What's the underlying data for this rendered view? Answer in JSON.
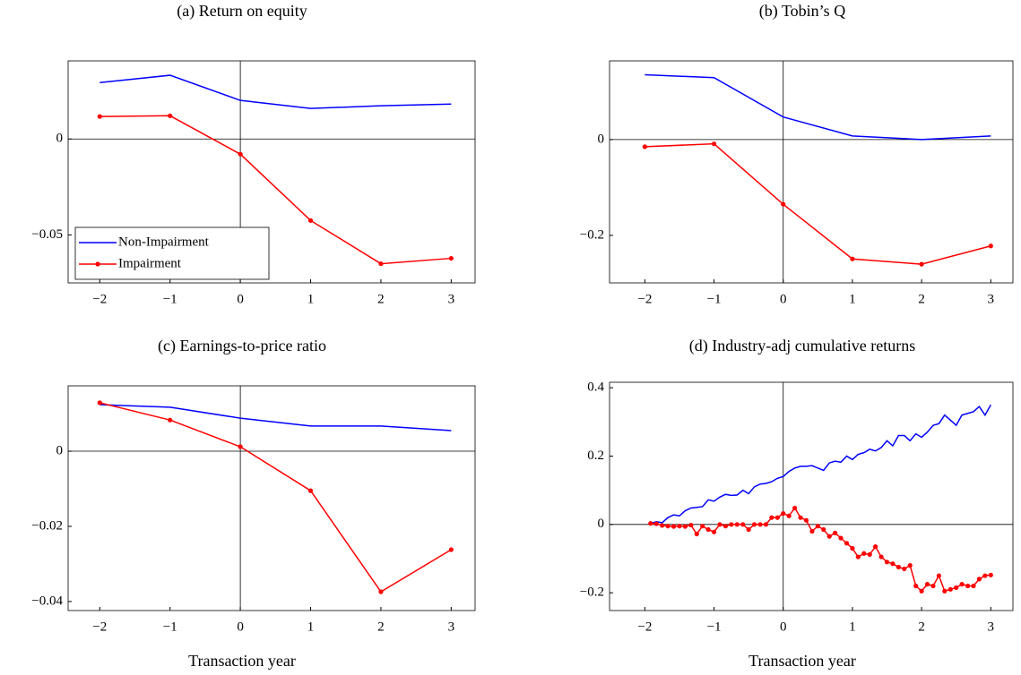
{
  "chart_data": [
    {
      "type": "line",
      "title": "(a) Return on equity",
      "x": [
        -2,
        -1,
        0,
        1,
        2,
        3
      ],
      "series": [
        {
          "name": "Non-Impairment",
          "color": "#0000ff",
          "marker": false,
          "values": [
            0.0294,
            0.0332,
            0.0201,
            0.0159,
            0.0173,
            0.0182
          ]
        },
        {
          "name": "Impairment",
          "color": "#ff0000",
          "marker": true,
          "values": [
            0.0117,
            0.0121,
            -0.0079,
            -0.0425,
            -0.065,
            -0.0622
          ]
        }
      ],
      "xlim": [
        -2.45,
        3.34
      ],
      "ylim": [
        -0.075,
        0.0407
      ],
      "xticks": [
        {
          "value": -2,
          "label": "−2"
        },
        {
          "value": -1,
          "label": "−1"
        },
        0,
        1,
        2,
        3
      ],
      "yticks": [
        {
          "value": -0.05,
          "label": "−0.05"
        },
        0
      ],
      "legend": "lower left",
      "zero_lines": true
    },
    {
      "type": "line",
      "title": "(b) Tobin’s Q",
      "x": [
        -2,
        -1,
        0,
        1,
        2,
        3
      ],
      "series": [
        {
          "color": "#0000ff",
          "marker": false,
          "values": [
            0.135,
            0.129,
            0.047,
            0.0075,
            0,
            0.0075
          ]
        },
        {
          "color": "#ff0000",
          "marker": true,
          "values": [
            -0.015,
            -0.009,
            -0.135,
            -0.249,
            -0.26,
            -0.222
          ]
        }
      ],
      "xlim": [
        -2.51,
        3.32
      ],
      "ylim": [
        -0.299,
        0.164
      ],
      "xticks": [
        {
          "value": -2,
          "label": "−2"
        },
        {
          "value": -1,
          "label": "−1"
        },
        0,
        1,
        2,
        3
      ],
      "yticks": [
        {
          "value": -0.2,
          "label": "−0.2"
        },
        0
      ],
      "zero_lines": true
    },
    {
      "type": "line",
      "title": "(c) Earnings-to-price ratio",
      "x_label": "Transaction year",
      "x": [
        -2,
        -1,
        0,
        1,
        2,
        3
      ],
      "series": [
        {
          "color": "#0000ff",
          "marker": false,
          "values": [
            0.0124,
            0.0117,
            0.0088,
            0.0067,
            0.0067,
            0.0055
          ]
        },
        {
          "color": "#ff0000",
          "marker": true,
          "values": [
            0.0129,
            0.0083,
            0.0012,
            -0.0105,
            -0.0374,
            -0.0262
          ]
        }
      ],
      "xlim": [
        -2.45,
        3.34
      ],
      "ylim": [
        -0.0424,
        0.0174
      ],
      "xticks": [
        {
          "value": -2,
          "label": "−2"
        },
        {
          "value": -1,
          "label": "−1"
        },
        0,
        1,
        2,
        3
      ],
      "yticks": [
        {
          "value": -0.04,
          "label": "−0.04"
        },
        {
          "value": -0.02,
          "label": "−0.02"
        },
        0
      ],
      "zero_lines": true
    },
    {
      "type": "line",
      "title": "(d) Industry-adj cumulative returns",
      "x_label": "Transaction year",
      "x": [
        -1.917,
        -1.833,
        -1.75,
        -1.667,
        -1.583,
        -1.5,
        -1.417,
        -1.333,
        -1.25,
        -1.167,
        -1.083,
        -1,
        -0.917,
        -0.833,
        -0.75,
        -0.667,
        -0.583,
        -0.5,
        -0.417,
        -0.333,
        -0.25,
        -0.167,
        -0.083,
        0,
        0.083,
        0.167,
        0.25,
        0.333,
        0.417,
        0.5,
        0.583,
        0.667,
        0.75,
        0.833,
        0.917,
        1,
        1.083,
        1.167,
        1.25,
        1.333,
        1.417,
        1.5,
        1.583,
        1.667,
        1.75,
        1.833,
        1.917,
        2,
        2.083,
        2.167,
        2.25,
        2.333,
        2.417,
        2.5,
        2.583,
        2.667,
        2.75,
        2.833,
        2.917,
        3
      ],
      "series": [
        {
          "color": "#0000ff",
          "marker": false,
          "values": [
            0.003,
            0.008,
            0.005,
            0.02,
            0.028,
            0.025,
            0.04,
            0.048,
            0.05,
            0.052,
            0.072,
            0.068,
            0.08,
            0.088,
            0.085,
            0.086,
            0.1,
            0.09,
            0.11,
            0.118,
            0.12,
            0.125,
            0.135,
            0.14,
            0.155,
            0.165,
            0.17,
            0.17,
            0.172,
            0.165,
            0.158,
            0.18,
            0.185,
            0.182,
            0.2,
            0.19,
            0.205,
            0.21,
            0.22,
            0.215,
            0.225,
            0.245,
            0.23,
            0.26,
            0.26,
            0.245,
            0.265,
            0.255,
            0.27,
            0.29,
            0.295,
            0.32,
            0.305,
            0.29,
            0.32,
            0.325,
            0.33,
            0.345,
            0.32,
            0.35
          ]
        },
        {
          "color": "#ff0000",
          "marker": true,
          "values": [
            0.003,
            0.002,
            -0.003,
            -0.005,
            -0.006,
            -0.005,
            -0.006,
            -0.002,
            -0.028,
            -0.005,
            -0.015,
            -0.022,
            0,
            -0.005,
            0,
            0,
            0,
            -0.015,
            0,
            0,
            0,
            0.02,
            0.02,
            0.032,
            0.025,
            0.048,
            0.02,
            0.012,
            -0.02,
            -0.005,
            -0.015,
            -0.035,
            -0.025,
            -0.04,
            -0.055,
            -0.07,
            -0.095,
            -0.085,
            -0.088,
            -0.065,
            -0.095,
            -0.11,
            -0.115,
            -0.125,
            -0.13,
            -0.12,
            -0.18,
            -0.195,
            -0.175,
            -0.18,
            -0.15,
            -0.195,
            -0.19,
            -0.185,
            -0.175,
            -0.18,
            -0.18,
            -0.16,
            -0.15,
            -0.148
          ]
        }
      ],
      "xlim": [
        -2.51,
        3.32
      ],
      "ylim": [
        -0.252,
        0.416
      ],
      "xticks": [
        {
          "value": -2,
          "label": "−2"
        },
        {
          "value": -1,
          "label": "−1"
        },
        0,
        1,
        2,
        3
      ],
      "yticks": [
        {
          "value": -0.2,
          "label": "−0.2"
        },
        0,
        0.2,
        0.4
      ],
      "zero_lines": true
    }
  ]
}
